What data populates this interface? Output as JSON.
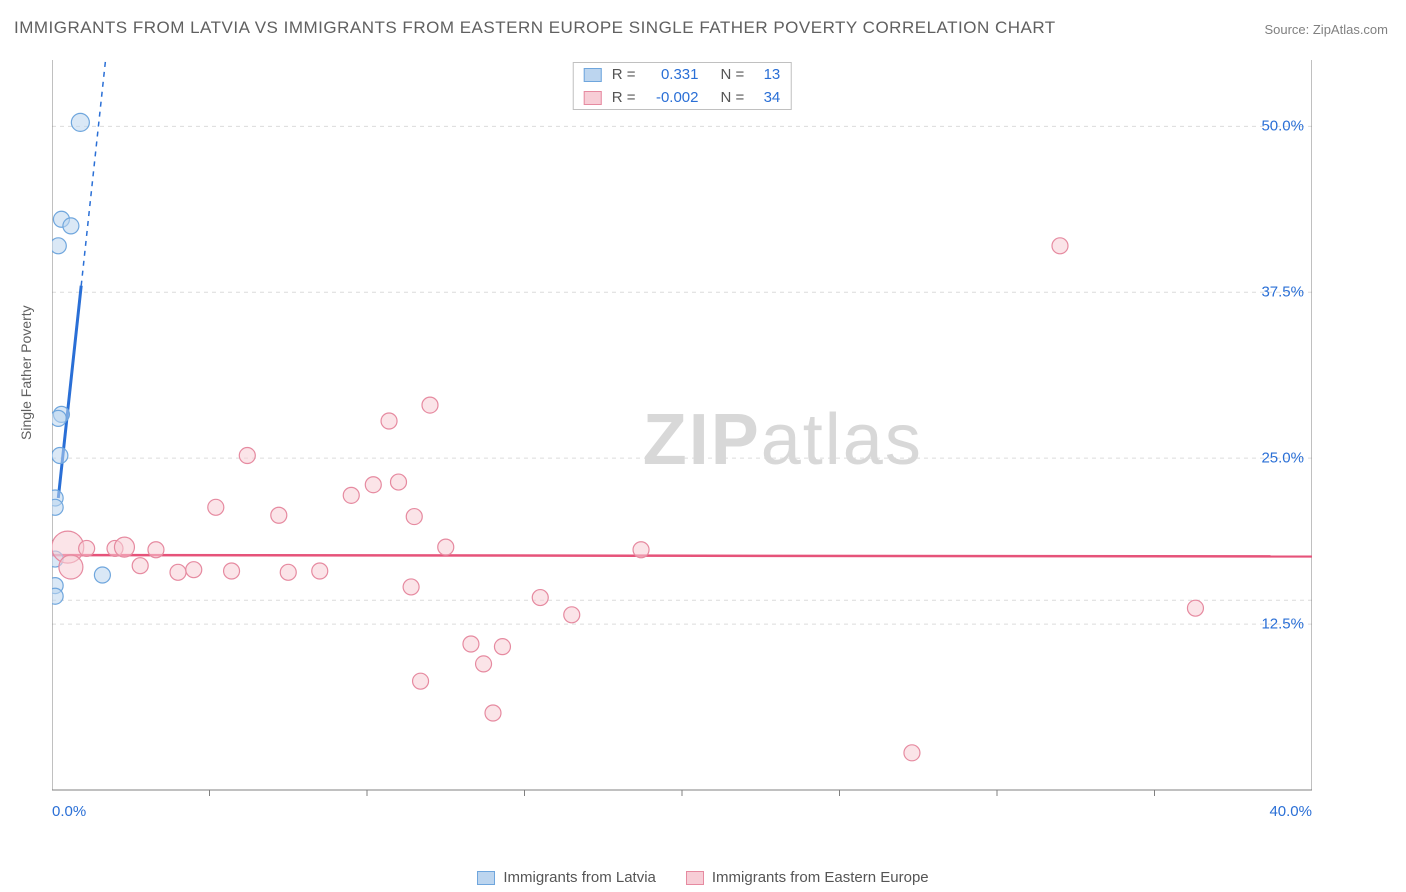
{
  "title": "IMMIGRANTS FROM LATVIA VS IMMIGRANTS FROM EASTERN EUROPE SINGLE FATHER POVERTY CORRELATION CHART",
  "source_prefix": "Source: ",
  "source_name": "ZipAtlas.com",
  "watermark_bold": "ZIP",
  "watermark_light": "atlas",
  "chart": {
    "type": "scatter",
    "background_color": "#ffffff",
    "grid_color": "#dcdcdc",
    "axis_color": "#808080",
    "tick_label_color": "#2a6fd6",
    "text_color": "#606060",
    "label_fontsize": 14,
    "tick_fontsize": 15,
    "title_fontsize": 17,
    "ylabel": "Single Father Poverty",
    "xlim": [
      0,
      40
    ],
    "ylim": [
      0,
      55
    ],
    "xtick_labels": [
      "0.0%",
      "40.0%"
    ],
    "xtick_positions": [
      0,
      40
    ],
    "xtick_minor": [
      5,
      10,
      15,
      20,
      25,
      30,
      35
    ],
    "ytick_labels": [
      "12.5%",
      "25.0%",
      "37.5%",
      "50.0%"
    ],
    "ytick_positions": [
      12.5,
      25.0,
      37.5,
      50.0
    ],
    "series": [
      {
        "name": "Immigrants from Latvia",
        "marker_fill": "#bcd5ef",
        "marker_stroke": "#6fa6dd",
        "marker_fill_opacity": 0.55,
        "line_color": "#2a6fd6",
        "line_width": 3,
        "line_dash_extrapolate": "5,5",
        "r_value": "0.331",
        "n_value": "13",
        "trend": {
          "x1": 0.2,
          "y1": 22,
          "x2": 1.7,
          "y2": 55,
          "solid_until_y": 38
        },
        "points": [
          {
            "x": 0.9,
            "y": 50.3,
            "r": 9
          },
          {
            "x": 0.3,
            "y": 43.0,
            "r": 8
          },
          {
            "x": 0.6,
            "y": 42.5,
            "r": 8
          },
          {
            "x": 0.2,
            "y": 41.0,
            "r": 8
          },
          {
            "x": 0.3,
            "y": 28.3,
            "r": 8
          },
          {
            "x": 0.2,
            "y": 28.0,
            "r": 8
          },
          {
            "x": 0.25,
            "y": 25.2,
            "r": 8
          },
          {
            "x": 0.1,
            "y": 22.0,
            "r": 8
          },
          {
            "x": 0.1,
            "y": 21.3,
            "r": 8
          },
          {
            "x": 0.1,
            "y": 17.4,
            "r": 8
          },
          {
            "x": 1.6,
            "y": 16.2,
            "r": 8
          },
          {
            "x": 0.1,
            "y": 15.4,
            "r": 8
          },
          {
            "x": 0.1,
            "y": 14.6,
            "r": 8
          }
        ]
      },
      {
        "name": "Immigrants from Eastern Europe",
        "marker_fill": "#f7cdd6",
        "marker_stroke": "#e68aa0",
        "marker_fill_opacity": 0.55,
        "line_color": "#e6537a",
        "line_width": 2.5,
        "r_value": "-0.002",
        "n_value": "34",
        "trend": {
          "x1": 0,
          "y1": 17.7,
          "x2": 40,
          "y2": 17.6
        },
        "points": [
          {
            "x": 32.0,
            "y": 41.0,
            "r": 8
          },
          {
            "x": 12.0,
            "y": 29.0,
            "r": 8
          },
          {
            "x": 10.7,
            "y": 27.8,
            "r": 8
          },
          {
            "x": 6.2,
            "y": 25.2,
            "r": 8
          },
          {
            "x": 10.2,
            "y": 23.0,
            "r": 8
          },
          {
            "x": 11.0,
            "y": 23.2,
            "r": 8
          },
          {
            "x": 9.5,
            "y": 22.2,
            "r": 8
          },
          {
            "x": 5.2,
            "y": 21.3,
            "r": 8
          },
          {
            "x": 7.2,
            "y": 20.7,
            "r": 8
          },
          {
            "x": 11.5,
            "y": 20.6,
            "r": 8
          },
          {
            "x": 12.5,
            "y": 18.3,
            "r": 8
          },
          {
            "x": 18.7,
            "y": 18.1,
            "r": 8
          },
          {
            "x": 0.5,
            "y": 18.3,
            "r": 16
          },
          {
            "x": 1.1,
            "y": 18.2,
            "r": 8
          },
          {
            "x": 2.0,
            "y": 18.2,
            "r": 8
          },
          {
            "x": 2.3,
            "y": 18.3,
            "r": 10
          },
          {
            "x": 3.3,
            "y": 18.1,
            "r": 8
          },
          {
            "x": 0.6,
            "y": 16.8,
            "r": 12
          },
          {
            "x": 2.8,
            "y": 16.9,
            "r": 8
          },
          {
            "x": 4.5,
            "y": 16.6,
            "r": 8
          },
          {
            "x": 4.0,
            "y": 16.4,
            "r": 8
          },
          {
            "x": 5.7,
            "y": 16.5,
            "r": 8
          },
          {
            "x": 7.5,
            "y": 16.4,
            "r": 8
          },
          {
            "x": 8.5,
            "y": 16.5,
            "r": 8
          },
          {
            "x": 11.4,
            "y": 15.3,
            "r": 8
          },
          {
            "x": 15.5,
            "y": 14.5,
            "r": 8
          },
          {
            "x": 16.5,
            "y": 13.2,
            "r": 8
          },
          {
            "x": 36.3,
            "y": 13.7,
            "r": 8
          },
          {
            "x": 13.3,
            "y": 11.0,
            "r": 8
          },
          {
            "x": 14.3,
            "y": 10.8,
            "r": 8
          },
          {
            "x": 13.7,
            "y": 9.5,
            "r": 8
          },
          {
            "x": 11.7,
            "y": 8.2,
            "r": 8
          },
          {
            "x": 14.0,
            "y": 5.8,
            "r": 8
          },
          {
            "x": 27.3,
            "y": 2.8,
            "r": 8
          }
        ]
      }
    ]
  }
}
